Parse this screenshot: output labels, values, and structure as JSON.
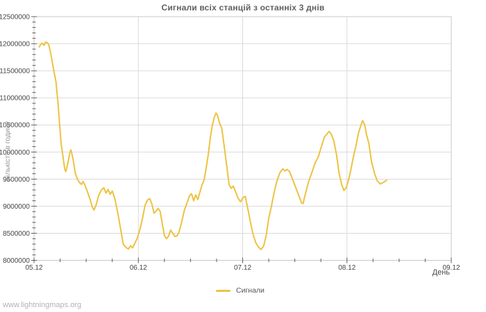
{
  "page": {
    "watermark": "www.lightningmaps.org"
  },
  "chart_data": {
    "type": "line",
    "title": "Сигнали всіх станцій з останніх 3 днів",
    "xlabel": "День",
    "ylabel": "Кількість в годину",
    "legend_position": "bottom-center",
    "grid": true,
    "colors": {
      "series": "#edc240",
      "gridline": "#d9d9d9",
      "border": "#c7c7c7",
      "tick": "#5c5c5c",
      "tick_label": "#454545",
      "title": "#5f5f5f"
    },
    "x_axis": {
      "tick_labels": [
        "05.12",
        "06.12",
        "07.12",
        "08.12",
        "09.12"
      ],
      "tick_positions_days": [
        0,
        1,
        2,
        3,
        4
      ],
      "minor_step_days": 0.25,
      "range_days": [
        0,
        4
      ]
    },
    "y_axis": {
      "tick_labels": [
        "8000000",
        "8500000",
        "9000000",
        "9500000",
        "10000000",
        "10500000",
        "11000000",
        "11500000",
        "12000000",
        "12500000"
      ],
      "tick_values": [
        8000000,
        8500000,
        9000000,
        9500000,
        10000000,
        10500000,
        11000000,
        11500000,
        12000000,
        12500000
      ],
      "minor_step": 100000,
      "range": [
        8000000,
        12500000
      ]
    },
    "series": [
      {
        "name": "Сигнали",
        "color": "#edc240",
        "x_days": [
          0.05,
          0.065,
          0.08,
          0.095,
          0.11,
          0.125,
          0.14,
          0.16,
          0.185,
          0.21,
          0.23,
          0.245,
          0.26,
          0.28,
          0.295,
          0.305,
          0.325,
          0.345,
          0.355,
          0.375,
          0.395,
          0.415,
          0.435,
          0.455,
          0.47,
          0.485,
          0.51,
          0.535,
          0.56,
          0.575,
          0.595,
          0.62,
          0.645,
          0.67,
          0.69,
          0.71,
          0.73,
          0.75,
          0.775,
          0.805,
          0.83,
          0.855,
          0.88,
          0.905,
          0.925,
          0.945,
          0.965,
          0.99,
          1.015,
          1.04,
          1.065,
          1.09,
          1.11,
          1.13,
          1.15,
          1.17,
          1.19,
          1.21,
          1.23,
          1.25,
          1.27,
          1.29,
          1.31,
          1.33,
          1.35,
          1.37,
          1.39,
          1.415,
          1.44,
          1.465,
          1.49,
          1.51,
          1.53,
          1.55,
          1.57,
          1.59,
          1.61,
          1.63,
          1.65,
          1.67,
          1.69,
          1.71,
          1.73,
          1.745,
          1.76,
          1.78,
          1.8,
          1.82,
          1.845,
          1.87,
          1.89,
          1.91,
          1.93,
          1.955,
          1.98,
          2.005,
          2.025,
          2.05,
          2.075,
          2.1,
          2.125,
          2.15,
          2.175,
          2.2,
          2.225,
          2.25,
          2.275,
          2.3,
          2.325,
          2.355,
          2.385,
          2.405,
          2.425,
          2.45,
          2.47,
          2.5,
          2.53,
          2.565,
          2.58,
          2.6,
          2.63,
          2.665,
          2.695,
          2.725,
          2.755,
          2.785,
          2.815,
          2.83,
          2.85,
          2.875,
          2.9,
          2.925,
          2.95,
          2.97,
          2.99,
          3.01,
          3.035,
          3.06,
          3.085,
          3.11,
          3.135,
          3.15,
          3.17,
          3.19,
          3.21,
          3.235,
          3.265,
          3.29,
          3.32,
          3.35,
          3.38
        ],
        "values": [
          11940000,
          11990000,
          12010000,
          11970000,
          12030000,
          12020000,
          11990000,
          11830000,
          11550000,
          11300000,
          10900000,
          10520000,
          10150000,
          9880000,
          9680000,
          9640000,
          9800000,
          10000000,
          10040000,
          9860000,
          9620000,
          9500000,
          9440000,
          9400000,
          9460000,
          9400000,
          9280000,
          9140000,
          8980000,
          8930000,
          9020000,
          9200000,
          9300000,
          9340000,
          9240000,
          9310000,
          9220000,
          9280000,
          9140000,
          8850000,
          8580000,
          8300000,
          8240000,
          8210000,
          8270000,
          8230000,
          8310000,
          8410000,
          8570000,
          8780000,
          9020000,
          9120000,
          9140000,
          9040000,
          8870000,
          8910000,
          8960000,
          8900000,
          8670000,
          8460000,
          8400000,
          8450000,
          8560000,
          8500000,
          8440000,
          8450000,
          8520000,
          8700000,
          8920000,
          9050000,
          9190000,
          9230000,
          9100000,
          9210000,
          9120000,
          9260000,
          9390000,
          9480000,
          9700000,
          9950000,
          10260000,
          10500000,
          10650000,
          10720000,
          10670000,
          10530000,
          10440000,
          10150000,
          9780000,
          9400000,
          9330000,
          9370000,
          9280000,
          9150000,
          9080000,
          9160000,
          9180000,
          8950000,
          8700000,
          8480000,
          8330000,
          8250000,
          8200000,
          8260000,
          8450000,
          8780000,
          8990000,
          9240000,
          9440000,
          9610000,
          9690000,
          9650000,
          9680000,
          9640000,
          9540000,
          9390000,
          9240000,
          9060000,
          9050000,
          9220000,
          9440000,
          9630000,
          9800000,
          9910000,
          10100000,
          10280000,
          10350000,
          10380000,
          10330000,
          10200000,
          9950000,
          9600000,
          9400000,
          9290000,
          9330000,
          9450000,
          9650000,
          9900000,
          10100000,
          10350000,
          10500000,
          10580000,
          10500000,
          10300000,
          10160000,
          9820000,
          9600000,
          9470000,
          9410000,
          9440000,
          9480000
        ]
      }
    ]
  }
}
